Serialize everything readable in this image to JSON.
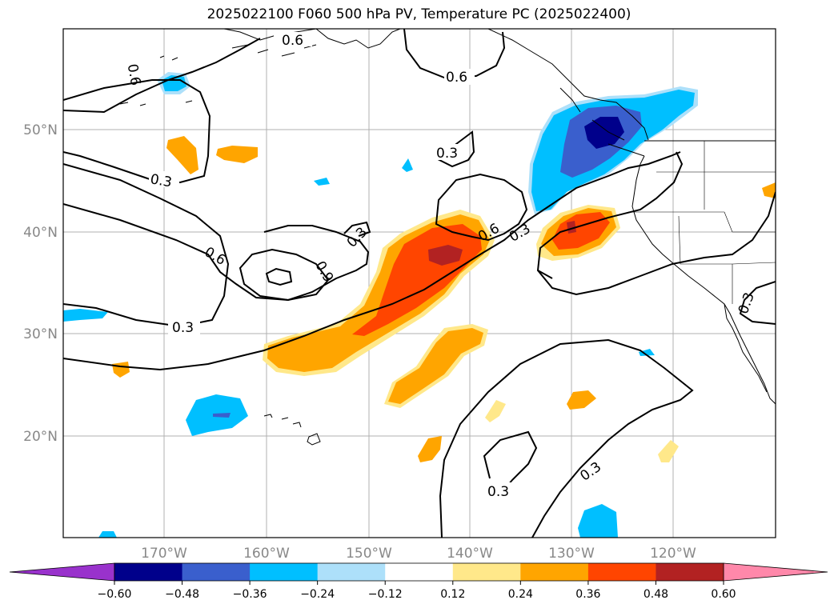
{
  "title": "2025022100 F060 500 hPa PV, Temperature PC (2025022400)",
  "map": {
    "lon_labels": [
      "170°W",
      "160°W",
      "150°W",
      "140°W",
      "130°W",
      "120°W"
    ],
    "lat_labels": [
      "50°N",
      "40°N",
      "30°N",
      "20°N"
    ],
    "contour_labels": [
      "0.6",
      "0.6",
      "0.3",
      "0.3",
      "0.6",
      "0.9",
      "0.3",
      "0.3",
      "0.6",
      "0.3",
      "0.3",
      "0.3",
      "0.3",
      "0.6"
    ]
  },
  "colorbar": {
    "ticks": [
      "−0.60",
      "−0.48",
      "−0.36",
      "−0.24",
      "−0.12",
      "0.12",
      "0.24",
      "0.36",
      "0.48",
      "0.60"
    ],
    "colors": [
      "#9932CC",
      "#00008B",
      "#3A5FCD",
      "#00BFFF",
      "#ADE0FA",
      "#FFFFFF",
      "#FFE88A",
      "#FFA500",
      "#FF4500",
      "#B22222",
      "#FF88AA"
    ]
  }
}
